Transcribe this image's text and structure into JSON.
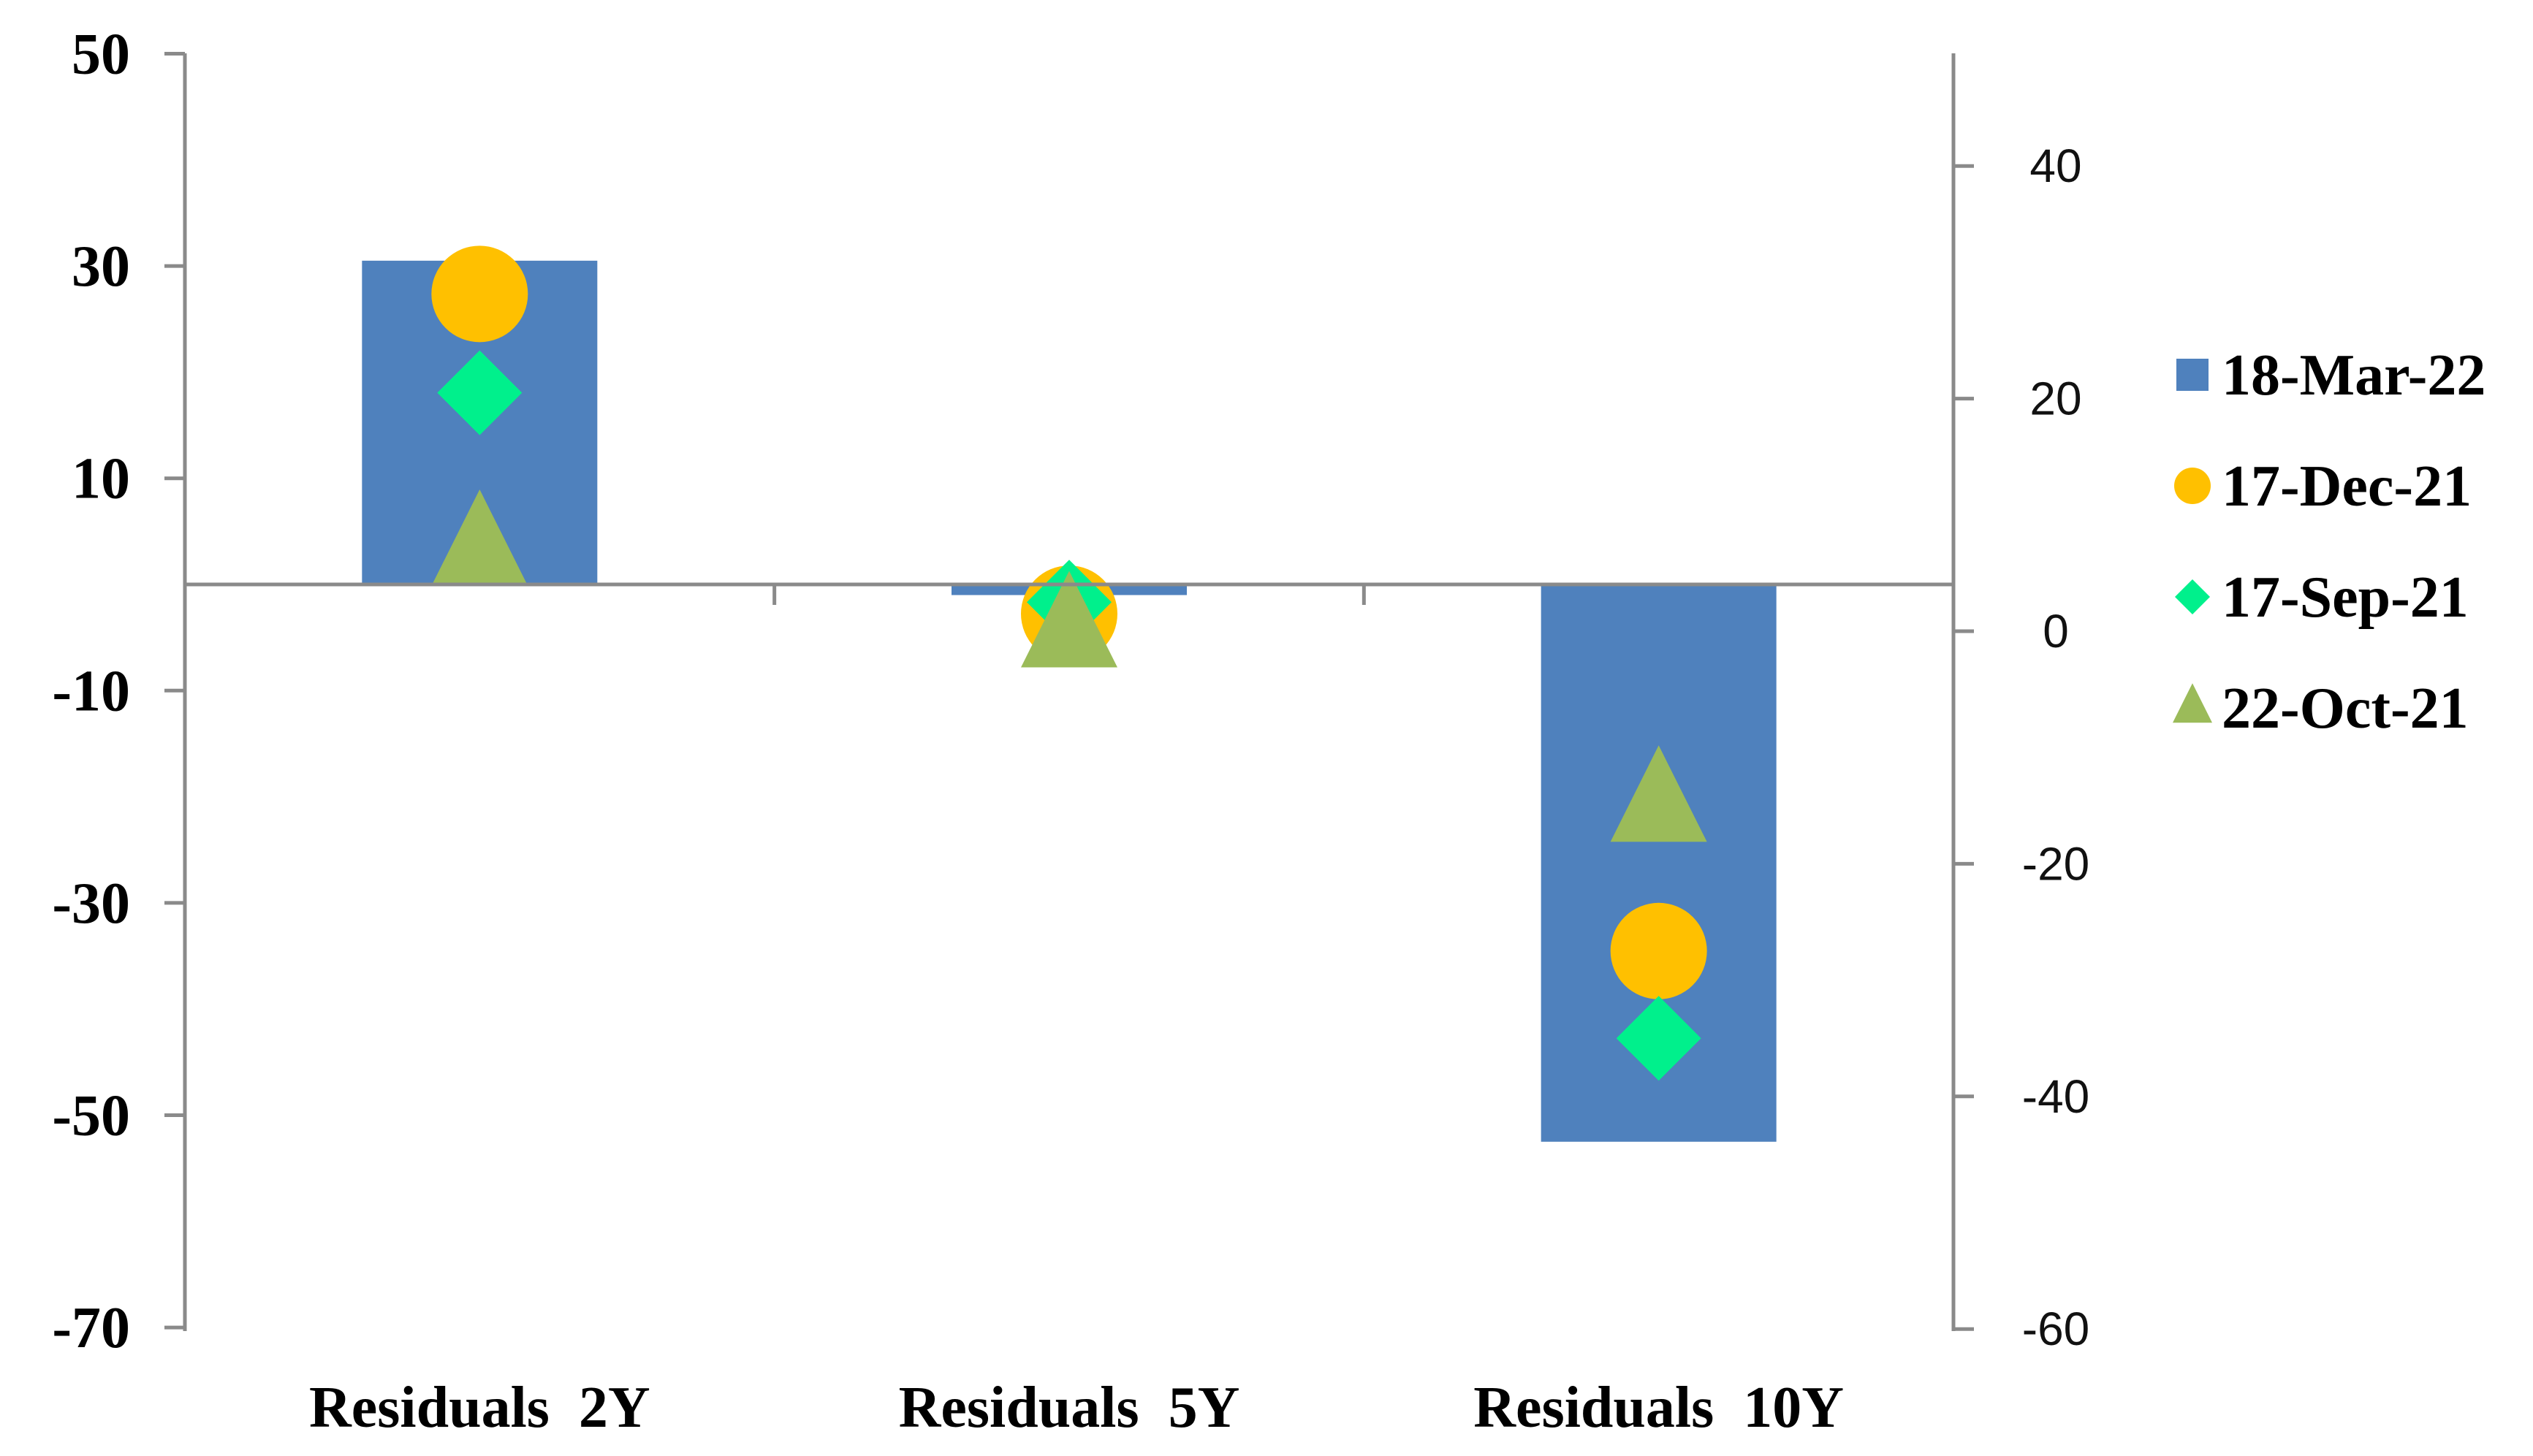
{
  "chart_data": {
    "type": "bar",
    "title": "",
    "xlabel": "",
    "ylabel": "",
    "categories": [
      "Residuals  2Y",
      "Residuals  5Y",
      "Residuals  10Y"
    ],
    "left_axis": {
      "ylim": [
        -70,
        50
      ],
      "ticks": [
        "50",
        "30",
        "10",
        "-10",
        "-30",
        "-50",
        "-70"
      ],
      "tick_values": [
        50,
        30,
        10,
        -10,
        -30,
        -50,
        -70
      ]
    },
    "right_axis": {
      "ylim": [
        -60,
        50
      ],
      "ticks": [
        "40",
        "20",
        "0",
        "-20",
        "-40",
        "-60"
      ],
      "tick_values": [
        40,
        20,
        0,
        -20,
        -40,
        -60
      ]
    },
    "series": [
      {
        "name": "18-Mar-22",
        "kind": "bar",
        "axis": "left",
        "color": "#4f81bd",
        "marker": "square",
        "values": [
          30.5,
          -1,
          -52.5
        ]
      },
      {
        "name": "17-Dec-21",
        "kind": "marker",
        "axis": "right",
        "color": "#ffc000",
        "marker": "circle",
        "values": [
          29,
          1.5,
          -27.5
        ]
      },
      {
        "name": "17-Sep-21",
        "kind": "marker",
        "axis": "right",
        "color": "#00f08c",
        "marker": "diamond",
        "values": [
          20.5,
          2.5,
          -35
        ]
      },
      {
        "name": "22-Oct-21",
        "kind": "marker",
        "axis": "right",
        "color": "#9bbb59",
        "marker": "triangle",
        "values": [
          7,
          0,
          -15
        ]
      }
    ],
    "legend": {
      "position": "right"
    },
    "grid": false
  }
}
